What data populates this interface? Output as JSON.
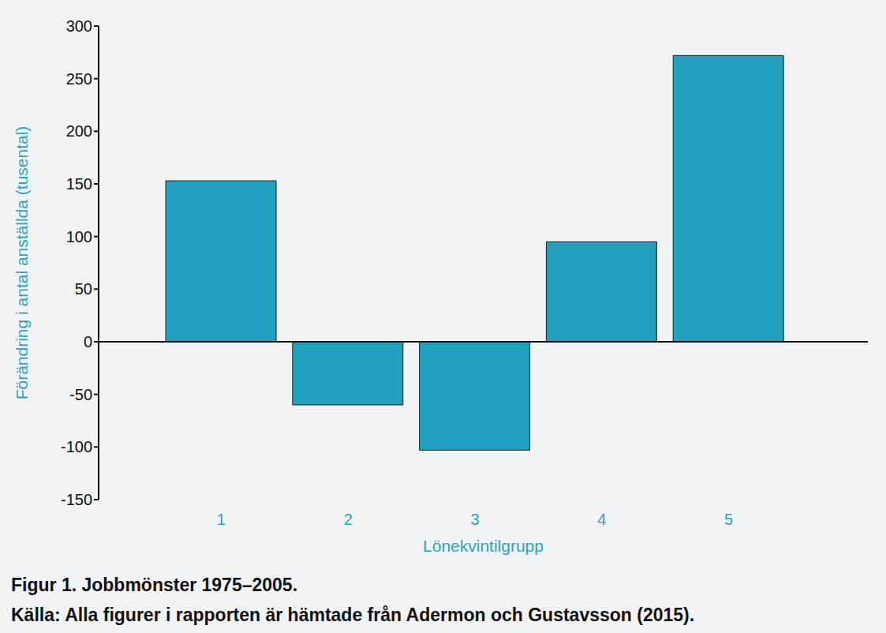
{
  "chart_data": {
    "type": "bar",
    "title": "Figur 1. Jobbmönster 1975–2005.",
    "source": "Källa: Alla figurer i rapporten är hämtade från Adermon och Gustavsson (2015).",
    "x_label": "Lönekvintilgrupp",
    "y_label": "Förändring i antal anställda (tusental)",
    "categories": [
      "1",
      "2",
      "3",
      "4",
      "5"
    ],
    "values": [
      153,
      -60,
      -103,
      95,
      272
    ],
    "color": "#21a0c0",
    "ylim": [
      -150,
      300
    ],
    "yticks": [
      -150,
      -100,
      -50,
      0,
      50,
      100,
      150,
      200,
      250,
      300
    ],
    "grid": false
  }
}
